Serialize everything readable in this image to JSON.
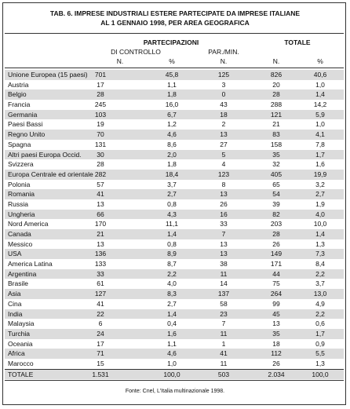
{
  "title": [
    "TAB. 6. IMPRESE INDUSTRIALI ESTERE PARTECIPATE DA IMPRESE ITALIANE",
    "AL 1 GENNAIO 1998, PER AREA GEOGRAFICA"
  ],
  "header": {
    "group1": "PARTECIPAZIONI",
    "sub1": "DI CONTROLLO",
    "sub2": "PAR./MIN.",
    "group2": "TOTALE",
    "columns": [
      "N.",
      "%",
      "N.",
      "N.",
      "%"
    ]
  },
  "table": {
    "rows": [
      [
        "Unione Europea (15 paesi)",
        "701",
        "45,8",
        "125",
        "826",
        "40,6"
      ],
      [
        "Austria",
        "17",
        "1,1",
        "3",
        "20",
        "1,0"
      ],
      [
        "Belgio",
        "28",
        "1,8",
        "0",
        "28",
        "1,4"
      ],
      [
        "Francia",
        "245",
        "16,0",
        "43",
        "288",
        "14,2"
      ],
      [
        "Germania",
        "103",
        "6,7",
        "18",
        "121",
        "5,9"
      ],
      [
        "Paesi Bassi",
        "19",
        "1,2",
        "2",
        "21",
        "1,0"
      ],
      [
        "Regno Unito",
        "70",
        "4,6",
        "13",
        "83",
        "4,1"
      ],
      [
        "Spagna",
        "131",
        "8,6",
        "27",
        "158",
        "7,8"
      ],
      [
        "Altri paesi Europa Occid.",
        "30",
        "2,0",
        "5",
        "35",
        "1,7"
      ],
      [
        "Svizzera",
        "28",
        "1,8",
        "4",
        "32",
        "1,6"
      ],
      [
        "Europa Centrale ed orientale",
        "282",
        "18,4",
        "123",
        "405",
        "19,9"
      ],
      [
        "Polonia",
        "57",
        "3,7",
        "8",
        "65",
        "3,2"
      ],
      [
        "Romania",
        "41",
        "2,7",
        "13",
        "54",
        "2,7"
      ],
      [
        "Russia",
        "13",
        "0,8",
        "26",
        "39",
        "1,9"
      ],
      [
        "Ungheria",
        "66",
        "4,3",
        "16",
        "82",
        "4,0"
      ],
      [
        "Nord America",
        "170",
        "11,1",
        "33",
        "203",
        "10,0"
      ],
      [
        "Canada",
        "21",
        "1,4",
        "7",
        "28",
        "1,4"
      ],
      [
        "Messico",
        "13",
        "0,8",
        "13",
        "26",
        "1,3"
      ],
      [
        "USA",
        "136",
        "8,9",
        "13",
        "149",
        "7,3"
      ],
      [
        "America Latina",
        "133",
        "8,7",
        "38",
        "171",
        "8,4"
      ],
      [
        "Argentina",
        "33",
        "2,2",
        "11",
        "44",
        "2,2"
      ],
      [
        "Brasile",
        "61",
        "4,0",
        "14",
        "75",
        "3,7"
      ],
      [
        "Asia",
        "127",
        "8,3",
        "137",
        "264",
        "13,0"
      ],
      [
        "Cina",
        "41",
        "2,7",
        "58",
        "99",
        "4,9"
      ],
      [
        "India",
        "22",
        "1,4",
        "23",
        "45",
        "2,2"
      ],
      [
        "Malaysia",
        "6",
        "0,4",
        "7",
        "13",
        "0,6"
      ],
      [
        "Turchia",
        "24",
        "1,6",
        "11",
        "35",
        "1,7"
      ],
      [
        "Oceania",
        "17",
        "1,1",
        "1",
        "18",
        "0,9"
      ],
      [
        "Africa",
        "71",
        "4,6",
        "41",
        "112",
        "5,5"
      ],
      [
        "Marocco",
        "15",
        "1,0",
        "11",
        "26",
        "1,3"
      ],
      [
        "TOTALE",
        "1.531",
        "100,0",
        "503",
        "2.034",
        "100,0"
      ]
    ]
  },
  "source": "Fonte: Cnel, L'Italia multinazionale 1998."
}
